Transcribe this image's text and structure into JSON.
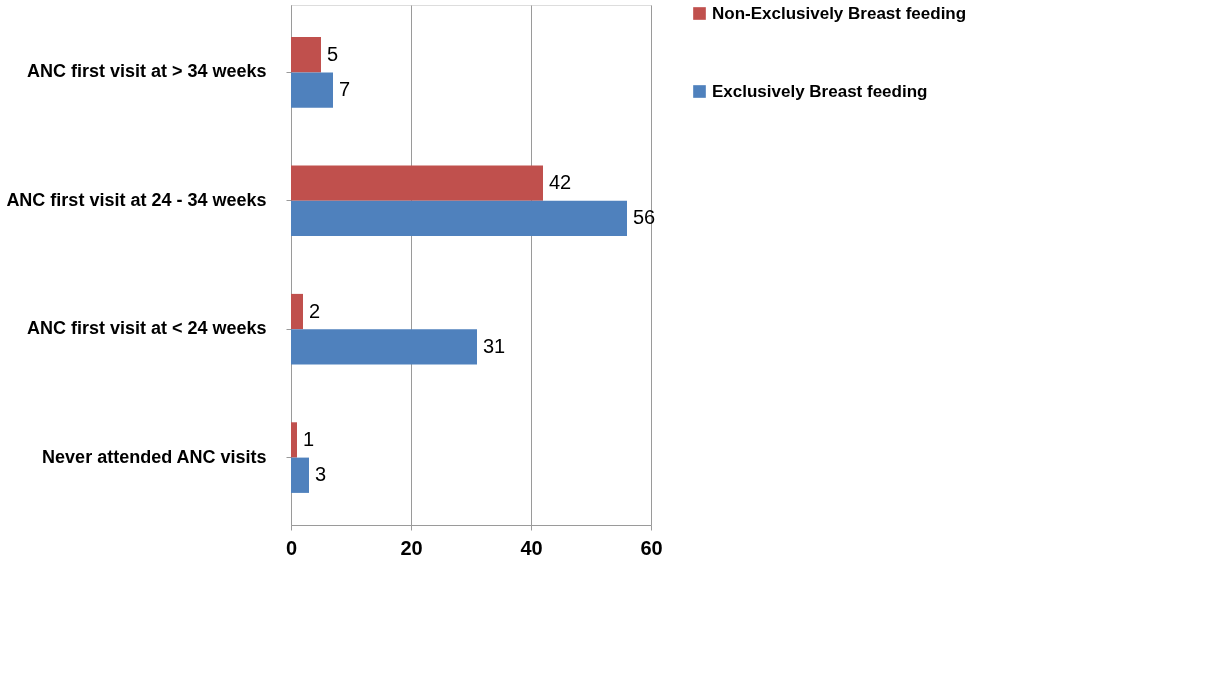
{
  "chart_data": {
    "type": "bar",
    "orientation": "horizontal",
    "categories": [
      "ANC first visit at > 34 weeks",
      "ANC first visit at 24 - 34 weeks",
      "ANC first visit at < 24 weeks",
      "Never attended ANC visits"
    ],
    "series": [
      {
        "name": "Non-Exclusively Breast feeding",
        "color": "#c0504d",
        "values": [
          5,
          42,
          2,
          1
        ]
      },
      {
        "name": "Exclusively Breast feeding",
        "color": "#4f81bd",
        "values": [
          7,
          56,
          31,
          3
        ]
      }
    ],
    "xlim": [
      0,
      60
    ],
    "xticks": [
      0,
      20,
      40,
      60
    ],
    "grid": "x",
    "legend": "right",
    "data_labels": true
  }
}
